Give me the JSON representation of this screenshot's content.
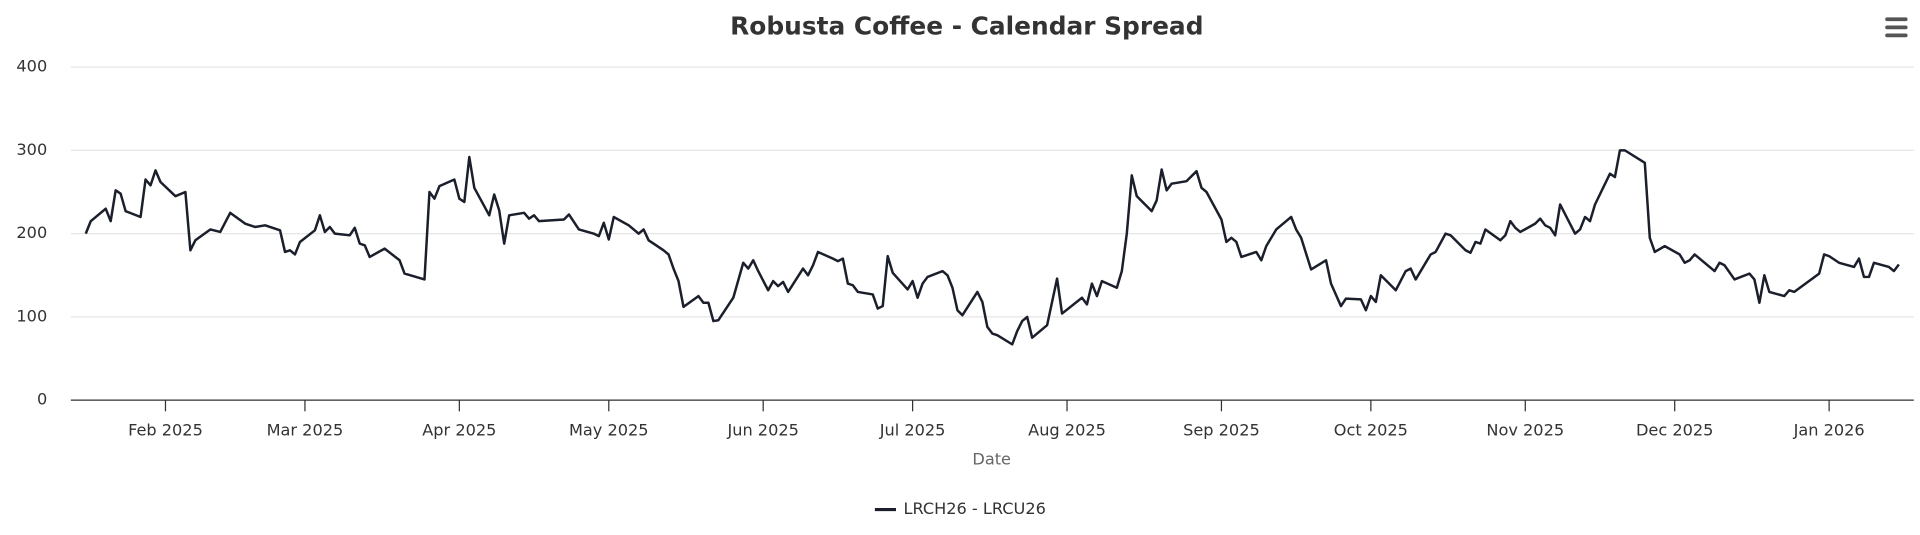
{
  "chart_data": {
    "type": "line",
    "title": "Robusta Coffee - Calendar Spread",
    "x_label": "Date",
    "x": [
      "2025-01-16",
      "2025-01-17",
      "2025-01-20",
      "2025-01-21",
      "2025-01-22",
      "2025-01-23",
      "2025-01-24",
      "2025-01-27",
      "2025-01-28",
      "2025-01-29",
      "2025-01-30",
      "2025-01-31",
      "2025-02-03",
      "2025-02-05",
      "2025-02-06",
      "2025-02-07",
      "2025-02-10",
      "2025-02-12",
      "2025-02-14",
      "2025-02-17",
      "2025-02-19",
      "2025-02-21",
      "2025-02-24",
      "2025-02-25",
      "2025-02-26",
      "2025-02-27",
      "2025-02-28",
      "2025-03-03",
      "2025-03-04",
      "2025-03-05",
      "2025-03-06",
      "2025-03-07",
      "2025-03-10",
      "2025-03-11",
      "2025-03-12",
      "2025-03-13",
      "2025-03-14",
      "2025-03-17",
      "2025-03-20",
      "2025-03-21",
      "2025-03-25",
      "2025-03-26",
      "2025-03-27",
      "2025-03-28",
      "2025-03-31",
      "2025-04-01",
      "2025-04-02",
      "2025-04-03",
      "2025-04-04",
      "2025-04-07",
      "2025-04-08",
      "2025-04-09",
      "2025-04-10",
      "2025-04-11",
      "2025-04-14",
      "2025-04-15",
      "2025-04-16",
      "2025-04-17",
      "2025-04-22",
      "2025-04-23",
      "2025-04-25",
      "2025-04-28",
      "2025-04-29",
      "2025-04-30",
      "2025-05-01",
      "2025-05-02",
      "2025-05-05",
      "2025-05-07",
      "2025-05-08",
      "2025-05-09",
      "2025-05-12",
      "2025-05-13",
      "2025-05-14",
      "2025-05-15",
      "2025-05-16",
      "2025-05-19",
      "2025-05-20",
      "2025-05-21",
      "2025-05-22",
      "2025-05-23",
      "2025-05-26",
      "2025-05-28",
      "2025-05-29",
      "2025-05-30",
      "2025-05-31",
      "2025-06-02",
      "2025-06-03",
      "2025-06-04",
      "2025-06-05",
      "2025-06-06",
      "2025-06-09",
      "2025-06-10",
      "2025-06-11",
      "2025-06-12",
      "2025-06-15",
      "2025-06-16",
      "2025-06-17",
      "2025-06-18",
      "2025-06-19",
      "2025-06-20",
      "2025-06-23",
      "2025-06-24",
      "2025-06-25",
      "2025-06-26",
      "2025-06-27",
      "2025-06-30",
      "2025-07-01",
      "2025-07-02",
      "2025-07-03",
      "2025-07-04",
      "2025-07-07",
      "2025-07-08",
      "2025-07-09",
      "2025-07-10",
      "2025-07-11",
      "2025-07-14",
      "2025-07-15",
      "2025-07-16",
      "2025-07-17",
      "2025-07-18",
      "2025-07-21",
      "2025-07-22",
      "2025-07-23",
      "2025-07-24",
      "2025-07-25",
      "2025-07-28",
      "2025-07-30",
      "2025-07-31",
      "2025-08-04",
      "2025-08-05",
      "2025-08-06",
      "2025-08-07",
      "2025-08-08",
      "2025-08-11",
      "2025-08-12",
      "2025-08-13",
      "2025-08-14",
      "2025-08-15",
      "2025-08-18",
      "2025-08-19",
      "2025-08-20",
      "2025-08-21",
      "2025-08-22",
      "2025-08-25",
      "2025-08-27",
      "2025-08-28",
      "2025-08-29",
      "2025-09-01",
      "2025-09-02",
      "2025-09-03",
      "2025-09-04",
      "2025-09-05",
      "2025-09-08",
      "2025-09-09",
      "2025-09-10",
      "2025-09-12",
      "2025-09-15",
      "2025-09-16",
      "2025-09-17",
      "2025-09-19",
      "2025-09-22",
      "2025-09-23",
      "2025-09-25",
      "2025-09-26",
      "2025-09-29",
      "2025-09-30",
      "2025-10-01",
      "2025-10-02",
      "2025-10-03",
      "2025-10-06",
      "2025-10-08",
      "2025-10-09",
      "2025-10-10",
      "2025-10-13",
      "2025-10-14",
      "2025-10-16",
      "2025-10-17",
      "2025-10-20",
      "2025-10-21",
      "2025-10-22",
      "2025-10-23",
      "2025-10-24",
      "2025-10-27",
      "2025-10-28",
      "2025-10-29",
      "2025-10-30",
      "2025-10-31",
      "2025-11-03",
      "2025-11-04",
      "2025-11-05",
      "2025-11-06",
      "2025-11-07",
      "2025-11-08",
      "2025-11-11",
      "2025-11-12",
      "2025-11-13",
      "2025-11-14",
      "2025-11-15",
      "2025-11-18",
      "2025-11-19",
      "2025-11-20",
      "2025-11-21",
      "2025-11-25",
      "2025-11-26",
      "2025-11-27",
      "2025-11-29",
      "2025-12-02",
      "2025-12-03",
      "2025-12-04",
      "2025-12-05",
      "2025-12-09",
      "2025-12-10",
      "2025-12-11",
      "2025-12-13",
      "2025-12-16",
      "2025-12-17",
      "2025-12-18",
      "2025-12-19",
      "2025-12-20",
      "2025-12-23",
      "2025-12-24",
      "2025-12-25",
      "2025-12-30",
      "2025-12-31",
      "2026-01-01",
      "2026-01-03",
      "2026-01-06",
      "2026-01-07",
      "2026-01-08",
      "2026-01-09",
      "2026-01-10",
      "2026-01-13",
      "2026-01-14",
      "2026-01-15"
    ],
    "series": [
      {
        "name": "LRCH26 - LRCU26",
        "color": "#1a1f2b",
        "values": [
          200,
          215,
          230,
          215,
          252,
          248,
          227,
          220,
          265,
          258,
          276,
          262,
          245,
          250,
          180,
          192,
          205,
          202,
          225,
          212,
          208,
          210,
          204,
          178,
          180,
          175,
          190,
          204,
          222,
          202,
          208,
          200,
          198,
          207,
          188,
          186,
          172,
          182,
          168,
          152,
          145,
          250,
          242,
          257,
          265,
          242,
          238,
          292,
          255,
          222,
          247,
          228,
          188,
          222,
          225,
          218,
          222,
          215,
          217,
          223,
          205,
          200,
          197,
          213,
          193,
          220,
          210,
          200,
          205,
          192,
          180,
          175,
          158,
          143,
          112,
          125,
          117,
          117,
          95,
          96,
          123,
          165,
          158,
          168,
          155,
          132,
          143,
          137,
          142,
          130,
          158,
          150,
          162,
          178,
          170,
          167,
          170,
          140,
          138,
          130,
          127,
          110,
          113,
          173,
          153,
          133,
          143,
          123,
          140,
          148,
          155,
          150,
          135,
          108,
          102,
          130,
          118,
          88,
          80,
          78,
          67,
          83,
          95,
          100,
          75,
          90,
          146,
          104,
          123,
          115,
          140,
          125,
          143,
          135,
          155,
          200,
          270,
          245,
          227,
          240,
          277,
          252,
          260,
          263,
          275,
          255,
          250,
          217,
          190,
          195,
          190,
          172,
          178,
          168,
          185,
          205,
          220,
          205,
          195,
          157,
          168,
          140,
          113,
          122,
          121,
          108,
          125,
          118,
          150,
          132,
          155,
          158,
          145,
          175,
          178,
          200,
          198,
          180,
          177,
          190,
          188,
          205,
          192,
          198,
          215,
          207,
          202,
          212,
          218,
          210,
          207,
          198,
          235,
          200,
          205,
          220,
          215,
          235,
          272,
          268,
          300,
          300,
          285,
          195,
          178,
          185,
          175,
          165,
          168,
          175,
          155,
          165,
          162,
          145,
          152,
          145,
          117,
          150,
          130,
          125,
          132,
          130,
          152,
          175,
          173,
          165,
          160,
          170,
          148,
          148,
          165,
          160,
          155,
          163
        ]
      }
    ],
    "xlim": [
      "2025-01-13",
      "2026-01-18"
    ],
    "xticks": [
      {
        "value": "2025-02-01",
        "label": "Feb 2025"
      },
      {
        "value": "2025-03-01",
        "label": "Mar 2025"
      },
      {
        "value": "2025-04-01",
        "label": "Apr 2025"
      },
      {
        "value": "2025-05-01",
        "label": "May 2025"
      },
      {
        "value": "2025-06-01",
        "label": "Jun 2025"
      },
      {
        "value": "2025-07-01",
        "label": "Jul 2025"
      },
      {
        "value": "2025-08-01",
        "label": "Aug 2025"
      },
      {
        "value": "2025-09-01",
        "label": "Sep 2025"
      },
      {
        "value": "2025-10-01",
        "label": "Oct 2025"
      },
      {
        "value": "2025-11-01",
        "label": "Nov 2025"
      },
      {
        "value": "2025-12-01",
        "label": "Dec 2025"
      },
      {
        "value": "2026-01-01",
        "label": "Jan 2026"
      }
    ],
    "ylim": [
      0,
      400
    ],
    "yticks": [
      0,
      100,
      200,
      300,
      400
    ],
    "grid": true,
    "legend": "bottom"
  }
}
